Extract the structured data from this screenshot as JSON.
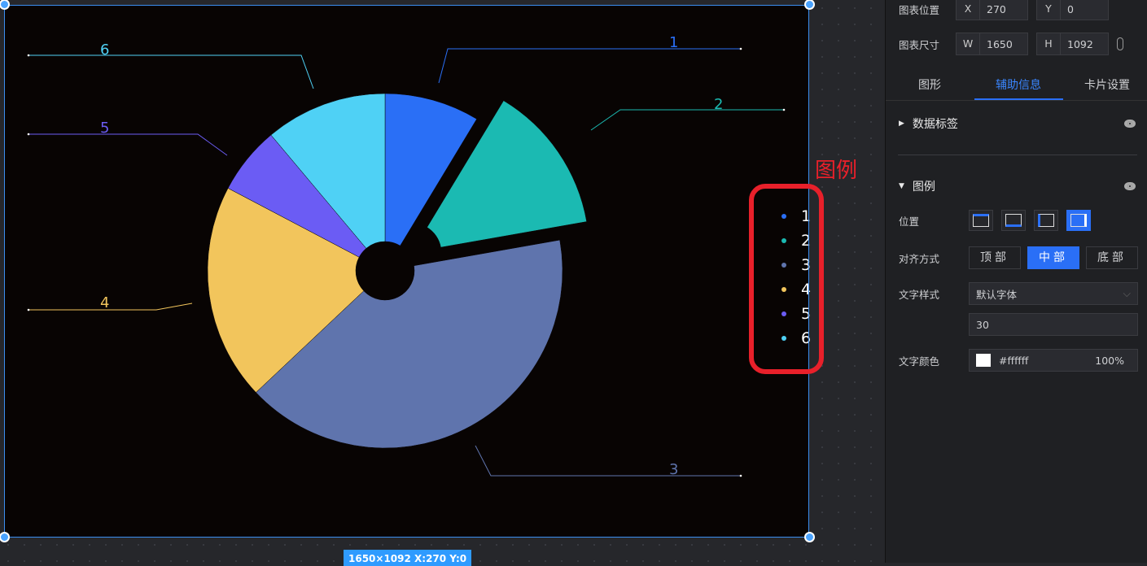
{
  "chart_data": {
    "type": "pie",
    "donut": true,
    "categories": [
      "1",
      "2",
      "3",
      "4",
      "5",
      "6"
    ],
    "values": [
      7,
      11,
      33,
      16,
      5,
      9
    ],
    "colors": [
      "#2a6ff6",
      "#1bbab2",
      "#5f74ad",
      "#f2c55c",
      "#6b5cf4",
      "#4fd1f5"
    ],
    "exploded": [
      "2"
    ],
    "legend": "right-middle"
  },
  "annotation": {
    "label": "图例"
  },
  "size_badge": "1650×1092   X:270 Y:0",
  "panel": {
    "position_label": "图表位置",
    "x_key": "X",
    "x": "270",
    "y_key": "Y",
    "y": "0",
    "size_label": "图表尺寸",
    "w_key": "W",
    "w": "1650",
    "h_key": "H",
    "h": "1092",
    "tabs": [
      "图形",
      "辅助信息",
      "卡片设置"
    ],
    "active_tab": "辅助信息",
    "data_label_section": "数据标签",
    "legend_section": "图例",
    "legend_position_label": "位置",
    "legend_position_selected": "right",
    "align_label": "对齐方式",
    "align_options": [
      "顶部",
      "中部",
      "底部"
    ],
    "align_selected": "中部",
    "font_style_label": "文字样式",
    "font_style": "默认字体",
    "font_size": "30",
    "text_color_label": "文字颜色",
    "text_color": "#ffffff",
    "text_opacity": "100%"
  }
}
